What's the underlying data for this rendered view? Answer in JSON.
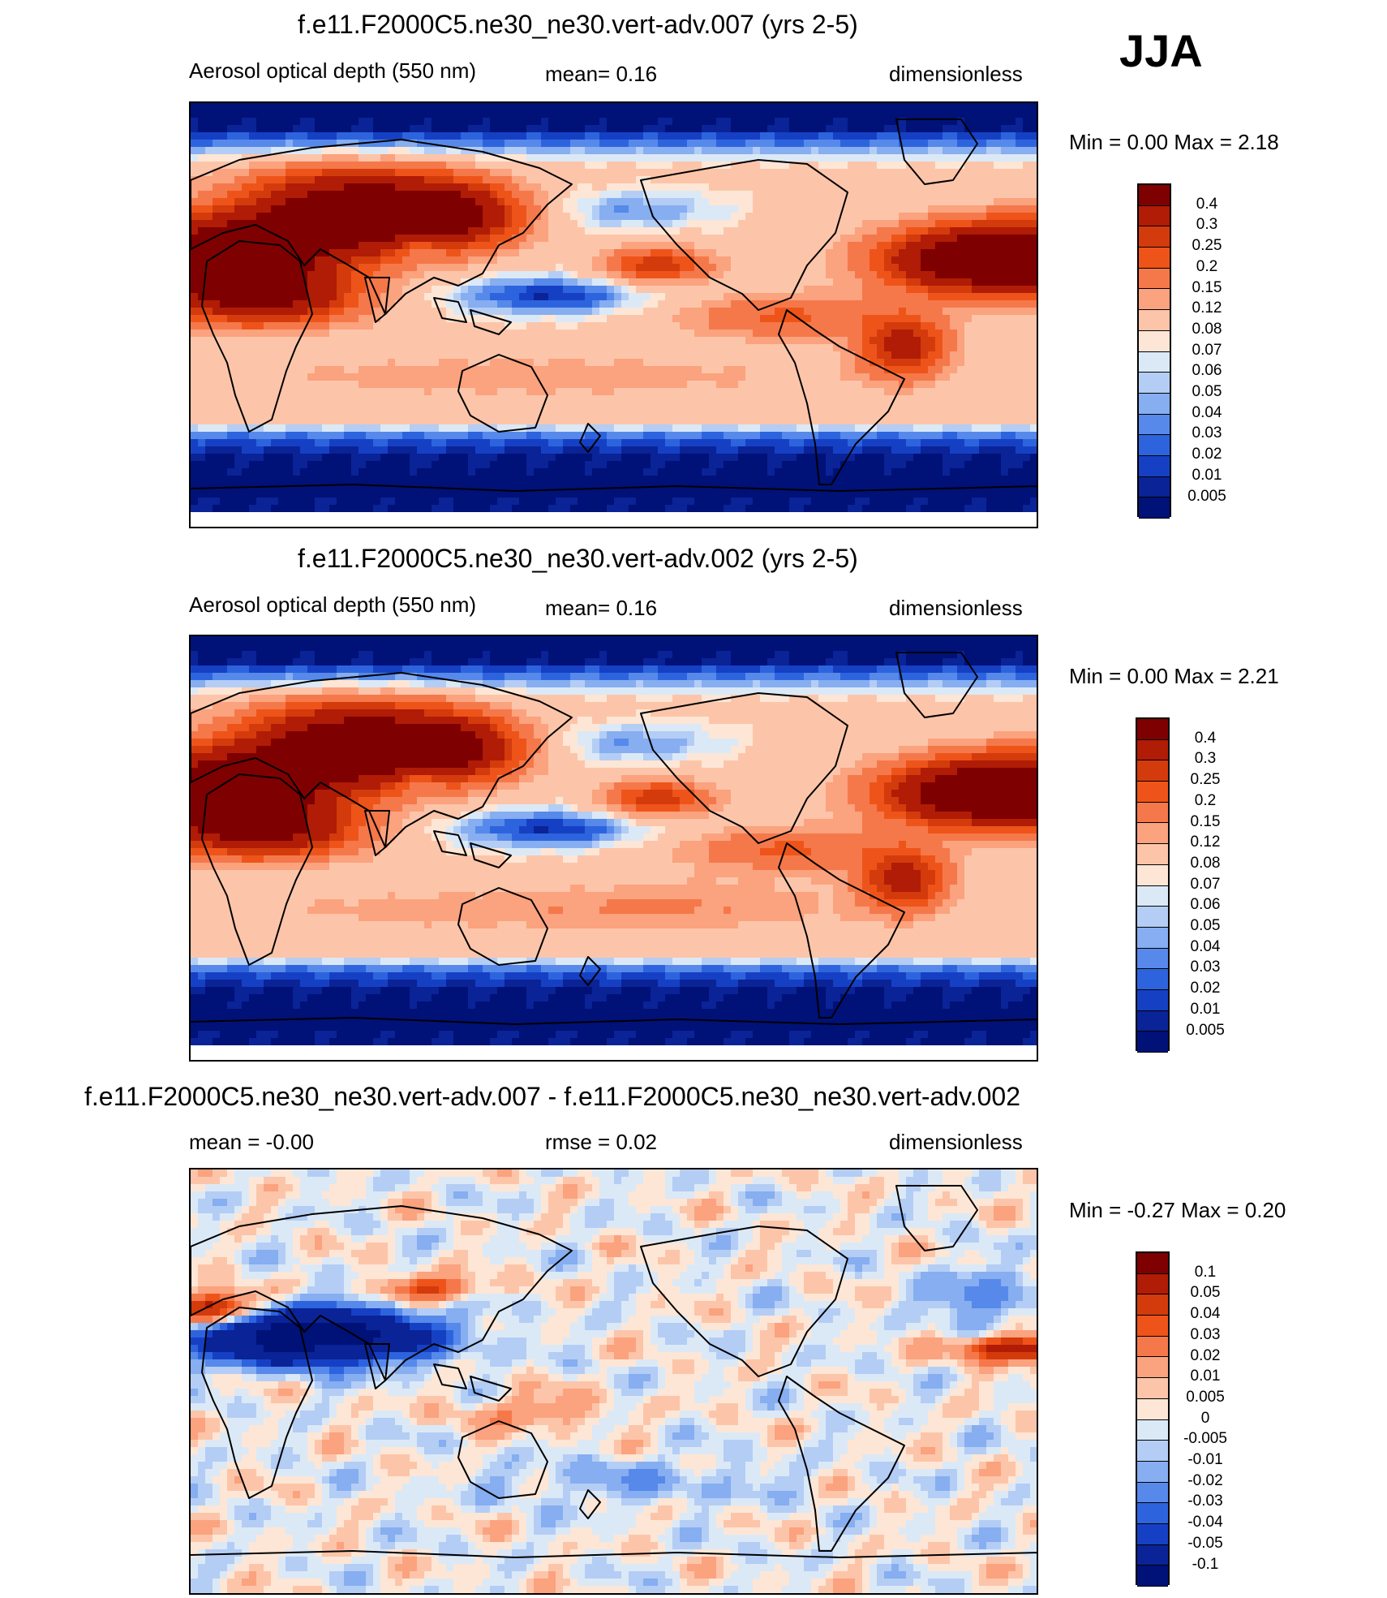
{
  "season": "JJA",
  "panels": [
    {
      "title": "f.e11.F2000C5.ne30_ne30.vert-adv.007 (yrs 2-5)",
      "left_label": "Aerosol optical depth (550 nm)",
      "center_label": "mean=   0.16",
      "units": "dimensionless",
      "minmax": "Min =    0.00 Max =    2.18",
      "field": "abs"
    },
    {
      "title": "f.e11.F2000C5.ne30_ne30.vert-adv.002 (yrs 2-5)",
      "left_label": "Aerosol optical depth (550 nm)",
      "center_label": "mean=   0.16",
      "units": "dimensionless",
      "minmax": "Min =    0.00 Max =    2.21",
      "field": "abs"
    },
    {
      "title": "f.e11.F2000C5.ne30_ne30.vert-adv.007 - f.e11.F2000C5.ne30_ne30.vert-adv.002",
      "left_label": "mean =  -0.00",
      "center_label": "rmse =    0.02",
      "units": "dimensionless",
      "minmax": "Min =  -0.27 Max =    0.20",
      "field": "diff"
    }
  ],
  "colorbars": {
    "abs": {
      "labels": [
        "0.4",
        "0.3",
        "0.25",
        "0.2",
        "0.15",
        "0.12",
        "0.08",
        "0.07",
        "0.06",
        "0.05",
        "0.04",
        "0.03",
        "0.02",
        "0.01",
        "0.005"
      ],
      "colors": [
        "#7f0000",
        "#b01c05",
        "#d43b0c",
        "#ee5419",
        "#f5784a",
        "#fba27e",
        "#fcc5a9",
        "#fde6d5",
        "#dbe9f7",
        "#b4cdf5",
        "#86aef0",
        "#5689ea",
        "#2d64de",
        "#1640c4",
        "#0a2396",
        "#001178"
      ]
    },
    "diff": {
      "labels": [
        "0.1",
        "0.05",
        "0.04",
        "0.03",
        "0.02",
        "0.01",
        "0.005",
        "0",
        "-0.005",
        "-0.01",
        "-0.02",
        "-0.03",
        "-0.04",
        "-0.05",
        "-0.1"
      ],
      "colors": [
        "#7f0000",
        "#b01c05",
        "#d43b0c",
        "#ee5419",
        "#f5784a",
        "#fba27e",
        "#fcc5a9",
        "#fde6d5",
        "#dbe9f7",
        "#b4cdf5",
        "#86aef0",
        "#5689ea",
        "#2d64de",
        "#1640c4",
        "#0a2396",
        "#001178"
      ]
    }
  },
  "chart_data": [
    {
      "type": "heatmap",
      "title": "f.e11.F2000C5.ne30_ne30.vert-adv.007 (yrs 2-5)",
      "variable": "Aerosol optical depth (550 nm)",
      "units": "dimensionless",
      "mean": 0.16,
      "min": 0.0,
      "max": 2.18,
      "levels": [
        0.005,
        0.01,
        0.02,
        0.03,
        0.04,
        0.05,
        0.06,
        0.07,
        0.08,
        0.12,
        0.15,
        0.2,
        0.25,
        0.3,
        0.4
      ]
    },
    {
      "type": "heatmap",
      "title": "f.e11.F2000C5.ne30_ne30.vert-adv.002 (yrs 2-5)",
      "variable": "Aerosol optical depth (550 nm)",
      "units": "dimensionless",
      "mean": 0.16,
      "min": 0.0,
      "max": 2.21,
      "levels": [
        0.005,
        0.01,
        0.02,
        0.03,
        0.04,
        0.05,
        0.06,
        0.07,
        0.08,
        0.12,
        0.15,
        0.2,
        0.25,
        0.3,
        0.4
      ]
    },
    {
      "type": "heatmap",
      "title": "f.e11.F2000C5.ne30_ne30.vert-adv.007 - f.e11.F2000C5.ne30_ne30.vert-adv.002",
      "units": "dimensionless",
      "mean": -0.0,
      "rmse": 0.02,
      "min": -0.27,
      "max": 0.2,
      "levels": [
        -0.1,
        -0.05,
        -0.04,
        -0.03,
        -0.02,
        -0.01,
        -0.005,
        0,
        0.005,
        0.01,
        0.02,
        0.03,
        0.04,
        0.05,
        0.1
      ]
    }
  ]
}
